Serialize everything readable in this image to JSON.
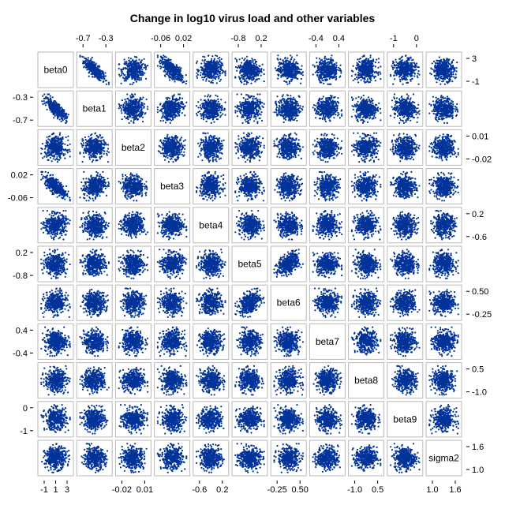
{
  "chart_data": {
    "type": "scatter",
    "subtype": "scatter-matrix",
    "title": "Change in log10 virus load and other variables",
    "variables": [
      "beta0",
      "beta1",
      "beta2",
      "beta3",
      "beta4",
      "beta5",
      "beta6",
      "beta7",
      "beta8",
      "beta9",
      "sigma2"
    ],
    "point_color": "#003399",
    "frame_color": "#b9b9b9",
    "axis_ticks": [
      {
        "variable": "beta0",
        "labels": [
          "-1",
          "1",
          "3"
        ],
        "side": "bottom"
      },
      {
        "variable": "beta0",
        "labels": [
          "3",
          "-1"
        ],
        "side": "right"
      },
      {
        "variable": "beta1",
        "labels": [
          "-0.7",
          "-0.3"
        ],
        "side": "top"
      },
      {
        "variable": "beta1",
        "labels": [
          "-0.3",
          "-0.7"
        ],
        "side": "left"
      },
      {
        "variable": "beta2",
        "labels": [
          "-0.02",
          "0.01"
        ],
        "side": "bottom"
      },
      {
        "variable": "beta2",
        "labels": [
          "0.01",
          "-0.02"
        ],
        "side": "right"
      },
      {
        "variable": "beta3",
        "labels": [
          "-0.06",
          "0.02"
        ],
        "side": "top"
      },
      {
        "variable": "beta3",
        "labels": [
          "0.02",
          "-0.06"
        ],
        "side": "left"
      },
      {
        "variable": "beta4",
        "labels": [
          "-0.6",
          "0.2"
        ],
        "side": "bottom"
      },
      {
        "variable": "beta4",
        "labels": [
          "0.2",
          "-0.6"
        ],
        "side": "right"
      },
      {
        "variable": "beta5",
        "labels": [
          "-0.8",
          "0.2"
        ],
        "side": "top"
      },
      {
        "variable": "beta5",
        "labels": [
          "0.2",
          "-0.8"
        ],
        "side": "left"
      },
      {
        "variable": "beta6",
        "labels": [
          "-0.25",
          "0.50"
        ],
        "side": "bottom"
      },
      {
        "variable": "beta6",
        "labels": [
          "0.50",
          "-0.25"
        ],
        "side": "right"
      },
      {
        "variable": "beta7",
        "labels": [
          "-0.4",
          "0.4"
        ],
        "side": "top"
      },
      {
        "variable": "beta7",
        "labels": [
          "0.4",
          "-0.4"
        ],
        "side": "left"
      },
      {
        "variable": "beta8",
        "labels": [
          "-1.0",
          "0.5"
        ],
        "side": "bottom"
      },
      {
        "variable": "beta8",
        "labels": [
          "0.5",
          "-1.0"
        ],
        "side": "right"
      },
      {
        "variable": "beta9",
        "labels": [
          "-1",
          "0"
        ],
        "side": "top"
      },
      {
        "variable": "beta9",
        "labels": [
          "0",
          "-1"
        ],
        "side": "left"
      },
      {
        "variable": "sigma2",
        "labels": [
          "1.0",
          "1.6"
        ],
        "side": "bottom"
      },
      {
        "variable": "sigma2",
        "labels": [
          "1.6",
          "1.0"
        ],
        "side": "right"
      }
    ],
    "correlations": [
      {
        "x": "beta0",
        "y": "beta1",
        "r": -0.8
      },
      {
        "x": "beta0",
        "y": "beta3",
        "r": -0.7
      },
      {
        "x": "beta1",
        "y": "beta3",
        "r": 0.3
      },
      {
        "x": "beta5",
        "y": "beta6",
        "r": 0.4
      }
    ],
    "points_per_panel": 400,
    "grid": false,
    "legend": "none"
  }
}
